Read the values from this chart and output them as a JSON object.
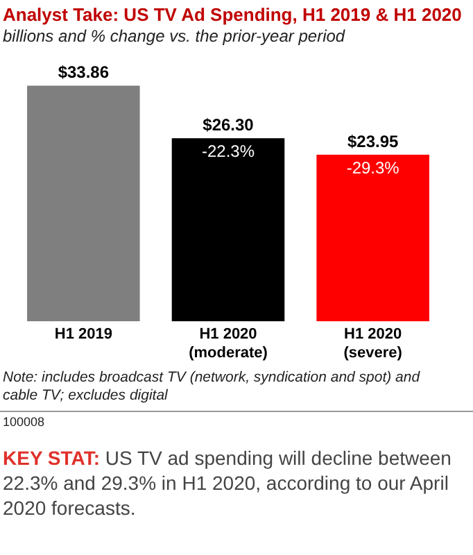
{
  "chart_data": {
    "type": "bar",
    "title": "Analyst Take: US TV Ad Spending, H1 2019 & H1 2020",
    "subtitle": "billions and % change vs. the prior-year period",
    "categories": [
      "H1 2019",
      "H1 2020\n(moderate)",
      "H1 2020\n(severe)"
    ],
    "values": [
      33.86,
      26.3,
      23.95
    ],
    "colors": [
      "#7f7f7f",
      "#000000",
      "#ff0000"
    ],
    "value_labels": [
      "$33.86",
      "$26.30",
      "$23.95"
    ],
    "annotations": [
      {
        "text": "-22.3%",
        "x": "H1 2020\n(moderate)",
        "y": 26.3
      },
      {
        "text": "-29.3%",
        "x": "H1 2020\n(severe)",
        "y": 23.95
      },
      "Note: includes broadcast TV (network, syndication and spot) and cable TV; excludes digital",
      "100008",
      "KEY STAT:",
      "US TV ad spending will decline between 22.3% and 29.3% in H1 2020, according to our April 2020 forecasts."
    ],
    "grid": false,
    "legend": false,
    "tick_labels": "x"
  }
}
